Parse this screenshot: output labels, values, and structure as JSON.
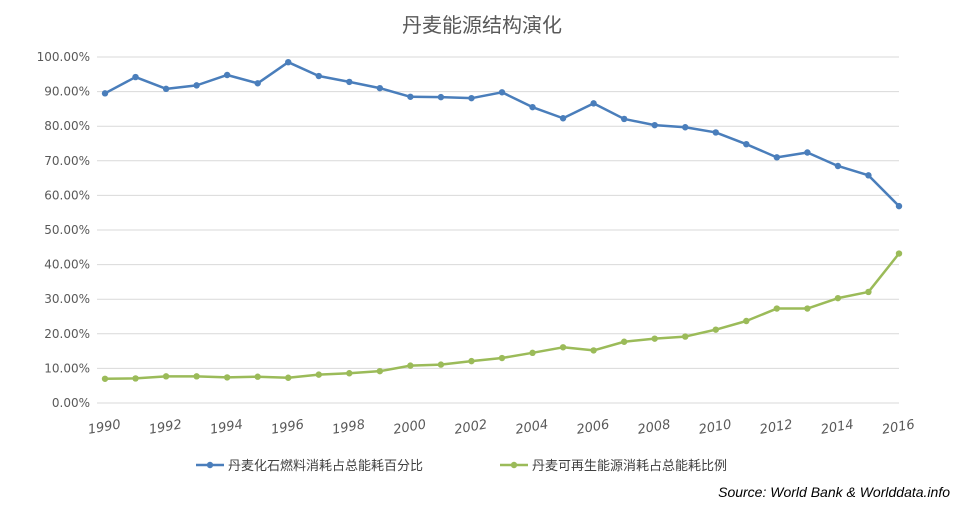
{
  "chart_data": {
    "type": "line",
    "title": "丹麦能源结构演化",
    "x": [
      1990,
      1991,
      1992,
      1993,
      1994,
      1995,
      1996,
      1997,
      1998,
      1999,
      2000,
      2001,
      2002,
      2003,
      2004,
      2005,
      2006,
      2007,
      2008,
      2009,
      2010,
      2011,
      2012,
      2013,
      2014,
      2015,
      2016
    ],
    "x_tick_labels": [
      "1990",
      "1992",
      "1994",
      "1996",
      "1998",
      "2000",
      "2002",
      "2004",
      "2006",
      "2008",
      "2010",
      "2012",
      "2014",
      "2016"
    ],
    "y_tick_labels": [
      "0.00%",
      "10.00%",
      "20.00%",
      "30.00%",
      "40.00%",
      "50.00%",
      "60.00%",
      "70.00%",
      "80.00%",
      "90.00%",
      "100.00%"
    ],
    "ylim": [
      0,
      100
    ],
    "grid": true,
    "legend_position": "bottom",
    "series": [
      {
        "name": "丹麦化石燃料消耗占总能耗百分比",
        "color": "#4a7ebb",
        "values": [
          89.5,
          94.2,
          90.8,
          91.8,
          94.8,
          92.4,
          98.5,
          94.5,
          92.8,
          91.0,
          88.5,
          88.4,
          88.1,
          89.8,
          85.5,
          82.3,
          86.6,
          82.1,
          80.3,
          79.7,
          78.2,
          74.8,
          71.0,
          72.4,
          68.5,
          65.8,
          56.9
        ]
      },
      {
        "name": "丹麦可再生能源消耗占总能耗比例",
        "color": "#9bbb59",
        "values": [
          7.0,
          7.1,
          7.7,
          7.7,
          7.4,
          7.6,
          7.3,
          8.2,
          8.6,
          9.2,
          10.8,
          11.1,
          12.1,
          13.0,
          14.5,
          16.1,
          15.2,
          17.7,
          18.6,
          19.2,
          21.2,
          23.7,
          27.3,
          27.3,
          30.3,
          32.1,
          43.2
        ]
      }
    ],
    "source": "Source: World Bank & Worlddata.info"
  }
}
